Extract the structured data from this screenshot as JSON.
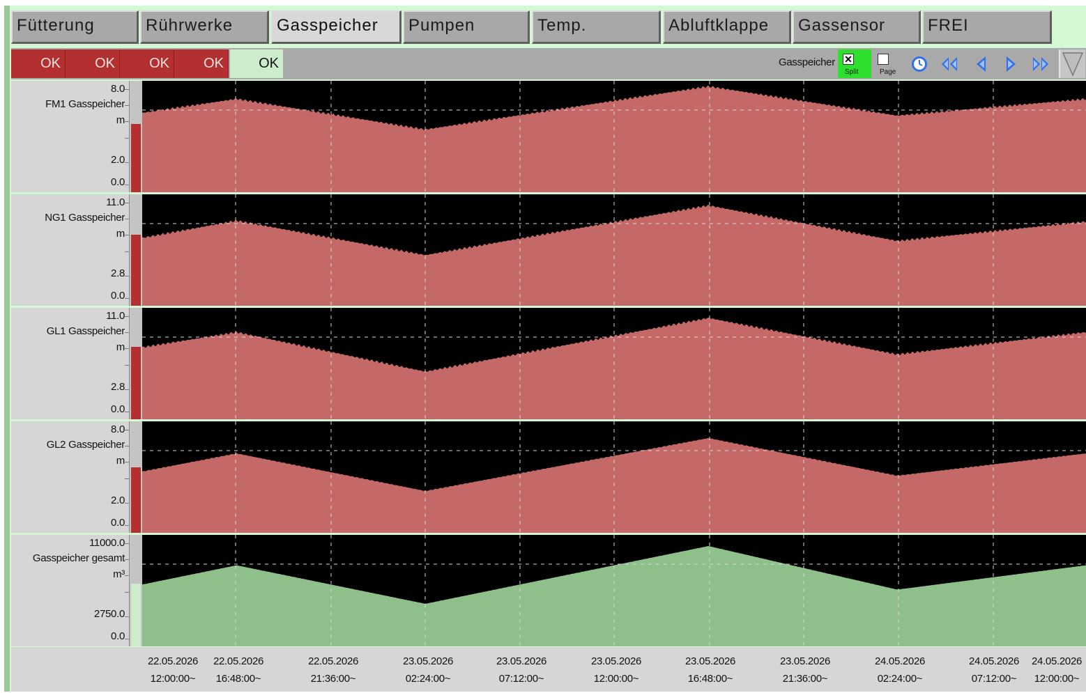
{
  "tabs": [
    {
      "label": "Fütterung",
      "active": false
    },
    {
      "label": "Rührwerke",
      "active": false
    },
    {
      "label": "Gasspeicher",
      "active": true
    },
    {
      "label": "Pumpen",
      "active": false
    },
    {
      "label": "Temp.",
      "active": false
    },
    {
      "label": "Abluftklappe",
      "active": false
    },
    {
      "label": "Gassensor",
      "active": false
    },
    {
      "label": "FREI",
      "active": false
    }
  ],
  "status": [
    {
      "label": "OK",
      "state": "alarm"
    },
    {
      "label": "OK",
      "state": "alarm"
    },
    {
      "label": "OK",
      "state": "alarm"
    },
    {
      "label": "OK",
      "state": "alarm"
    },
    {
      "label": "OK",
      "state": "normal"
    }
  ],
  "toolbar": {
    "title": "Gasspeicher",
    "split": {
      "label": "Split",
      "checked": true,
      "mark": "✕"
    },
    "page": {
      "label": "Page",
      "checked": false
    },
    "nav_icons": [
      "clock-icon",
      "fast-rewind-icon",
      "step-back-icon",
      "step-forward-icon",
      "fast-forward-icon",
      "dropdown-triangle-icon"
    ]
  },
  "colors": {
    "alarm": "#b42f2f",
    "ok": "#cdeccb",
    "red_series": "#c46868",
    "green_series": "#8fc08c",
    "active_checkbox": "#2ee02e",
    "nav_blue": "#2f6fe8"
  },
  "chart_data": [
    {
      "type": "area",
      "name": "FM1 Gasspeicher",
      "unit": "m",
      "ymax_label": "8.0",
      "ymid_label": "2.0",
      "ymin_label": "0.0",
      "ylim": [
        0,
        8
      ],
      "color": "#c46868",
      "noise": 0.28,
      "current_level": 0.61,
      "x": [
        "22.05.2026 12:00",
        "22.05.2026 16:48",
        "23.05.2026 02:24",
        "23.05.2026 16:48",
        "24.05.2026 02:24",
        "24.05.2026 12:00"
      ],
      "values": [
        5.7,
        6.7,
        4.5,
        7.6,
        5.5,
        6.7
      ]
    },
    {
      "type": "area",
      "name": "NG1 Gasspeicher",
      "unit": "m",
      "ymax_label": "11.0",
      "ymid_label": "2.8",
      "ymin_label": "0.0",
      "ylim": [
        0,
        11
      ],
      "color": "#c46868",
      "noise": 0.28,
      "current_level": 0.64,
      "x": [
        "22.05.2026 12:00",
        "22.05.2026 16:48",
        "23.05.2026 02:24",
        "23.05.2026 16:48",
        "24.05.2026 02:24",
        "24.05.2026 12:00"
      ],
      "values": [
        6.7,
        8.4,
        5.0,
        9.9,
        6.4,
        8.3
      ]
    },
    {
      "type": "area",
      "name": "GL1 Gasspeicher",
      "unit": "m",
      "ymax_label": "11.0",
      "ymid_label": "2.8",
      "ymin_label": "0.0",
      "ylim": [
        0,
        11
      ],
      "color": "#c46868",
      "noise": 0.28,
      "current_level": 0.65,
      "x": [
        "22.05.2026 12:00",
        "22.05.2026 16:48",
        "23.05.2026 02:24",
        "23.05.2026 16:48",
        "24.05.2026 02:24",
        "24.05.2026 12:00"
      ],
      "values": [
        7.1,
        8.6,
        4.7,
        10.0,
        6.4,
        8.6
      ]
    },
    {
      "type": "area",
      "name": "GL2 Gasspeicher",
      "unit": "m",
      "ymax_label": "8.0",
      "ymid_label": "2.0",
      "ymin_label": "0.0",
      "ylim": [
        0,
        8
      ],
      "color": "#c46868",
      "noise": 0.1,
      "current_level": 0.59,
      "x": [
        "22.05.2026 12:00",
        "22.05.2026 16:48",
        "23.05.2026 02:24",
        "23.05.2026 16:48",
        "24.05.2026 02:24",
        "24.05.2026 12:00"
      ],
      "values": [
        4.4,
        5.7,
        3.0,
        6.8,
        4.1,
        5.7
      ]
    },
    {
      "type": "area",
      "name": "Gasspeicher gesamt",
      "unit": "m³",
      "ymax_label": "11000.0",
      "ymid_label": "2750.0",
      "ymin_label": "0.0",
      "ylim": [
        0,
        11000
      ],
      "color": "#8fc08c",
      "noise": 0.02,
      "current_level": 0.56,
      "x": [
        "22.05.2026 12:00",
        "22.05.2026 16:48",
        "23.05.2026 02:24",
        "23.05.2026 16:48",
        "24.05.2026 02:24",
        "24.05.2026 12:00"
      ],
      "values": [
        6100,
        8000,
        4200,
        9900,
        5600,
        8000
      ]
    }
  ],
  "time_axis": [
    {
      "date": "22.05.2026",
      "time": "12:00:00~"
    },
    {
      "date": "22.05.2026",
      "time": "16:48:00~"
    },
    {
      "date": "22.05.2026",
      "time": "21:36:00~"
    },
    {
      "date": "23.05.2026",
      "time": "02:24:00~"
    },
    {
      "date": "23.05.2026",
      "time": "07:12:00~"
    },
    {
      "date": "23.05.2026",
      "time": "12:00:00~"
    },
    {
      "date": "23.05.2026",
      "time": "16:48:00~"
    },
    {
      "date": "23.05.2026",
      "time": "21:36:00~"
    },
    {
      "date": "24.05.2026",
      "time": "02:24:00~"
    },
    {
      "date": "24.05.2026",
      "time": "07:12:00~"
    },
    {
      "date": "24.05.2026",
      "time": "12:00:00~"
    }
  ]
}
